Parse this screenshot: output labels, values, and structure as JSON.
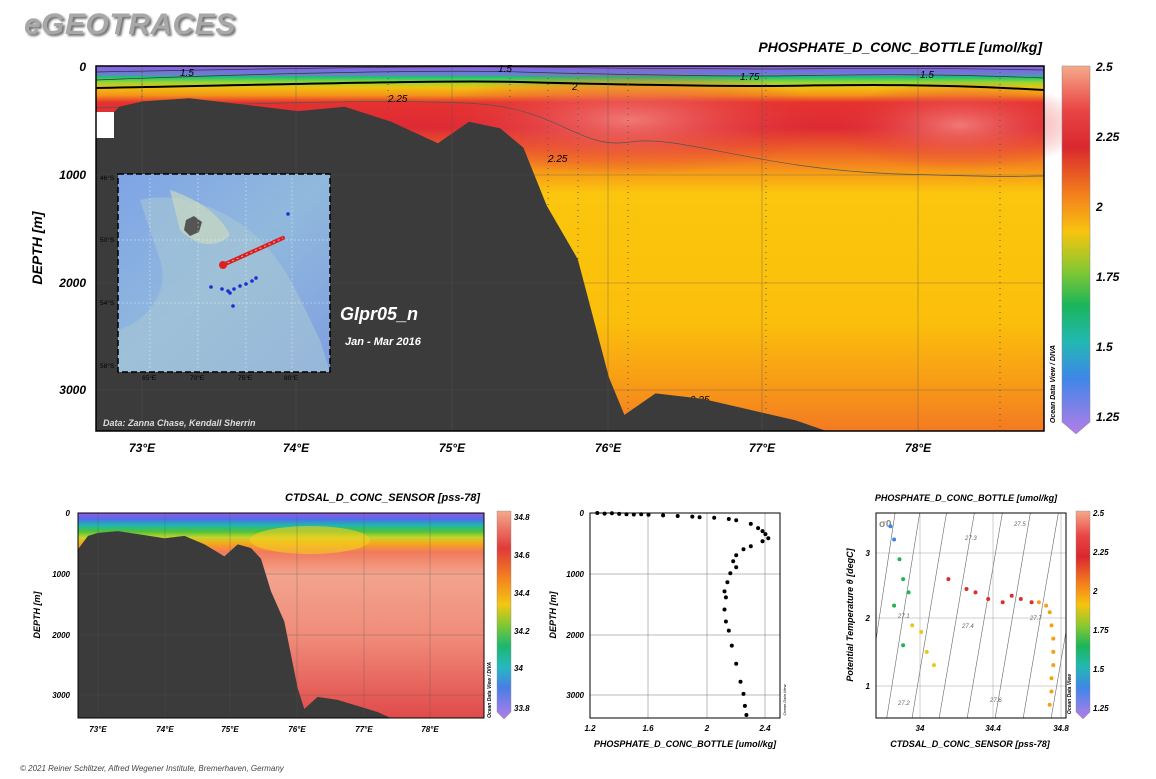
{
  "header": {
    "brand": "eGEOTRACES"
  },
  "footer": {
    "copyright": "© 2021 Reiner Schlitzer, Alfred Wegener Institute, Bremerhaven, Germany"
  },
  "main_section": {
    "title": "PHOSPHATE_D_CONC_BOTTLE [umol/kg]",
    "ylabel": "DEPTH [m]",
    "cruise_label": "GIpr05_n",
    "date_label": "Jan - Mar 2016",
    "data_credit": "Data: Zanna Chase, Kendall Sherrin",
    "odv_credit": "Ocean Data View / DIVA",
    "y_ticks": [
      "0",
      "1000",
      "2000",
      "3000"
    ],
    "x_ticks": [
      "73°E",
      "74°E",
      "75°E",
      "76°E",
      "77°E",
      "78°E"
    ],
    "contour_labels": [
      "1.5",
      "1.5",
      "1.75",
      "1.5",
      "2",
      "2.25",
      "2.25",
      "2.25"
    ],
    "colorbar_ticks": [
      "2.5",
      "2.25",
      "2",
      "1.75",
      "1.5",
      "1.25"
    ],
    "inset_lat_ticks": [
      "46°S",
      "50°S",
      "54°S",
      "58°S"
    ],
    "inset_lon_ticks": [
      "65°E",
      "70°E",
      "75°E",
      "80°E"
    ]
  },
  "salinity_section": {
    "title": "CTDSAL_D_CONC_SENSOR [pss-78]",
    "ylabel": "DEPTH [m]",
    "odv_credit": "Ocean Data View / DIVA",
    "y_ticks": [
      "0",
      "1000",
      "2000",
      "3000"
    ],
    "x_ticks": [
      "73°E",
      "74°E",
      "75°E",
      "76°E",
      "77°E",
      "78°E"
    ],
    "colorbar_ticks": [
      "34.8",
      "34.6",
      "34.4",
      "34.2",
      "34",
      "33.8"
    ]
  },
  "profile_plot": {
    "xlabel": "PHOSPHATE_D_CONC_BOTTLE [umol/kg]",
    "ylabel": "DEPTH [m]",
    "odv_credit": "Ocean Data View",
    "y_ticks": [
      "0",
      "1000",
      "2000",
      "3000"
    ],
    "x_ticks": [
      "1.2",
      "1.6",
      "2",
      "2.4"
    ]
  },
  "ts_plot": {
    "title": "PHOSPHATE_D_CONC_BOTTLE [umol/kg]",
    "xlabel": "CTDSAL_D_CONC_SENSOR [pss-78]",
    "ylabel": "Potential Temperature θ [degC]",
    "sigma_symbol": "σ0",
    "odv_credit": "Ocean Data View",
    "y_ticks": [
      "3",
      "2",
      "1"
    ],
    "x_ticks": [
      "34",
      "34.4",
      "34.8"
    ],
    "isopycnal_labels": [
      "27.1",
      "27.2",
      "27.3",
      "27.4",
      "27.5",
      "27.6",
      "27.7"
    ],
    "colorbar_ticks": [
      "2.5",
      "2.25",
      "2",
      "1.75",
      "1.5",
      "1.25"
    ]
  },
  "chart_data": [
    {
      "type": "heatmap",
      "title": "PHOSPHATE_D_CONC_BOTTLE [umol/kg]",
      "ylabel": "DEPTH [m]",
      "xlim": [
        72.7,
        78.8
      ],
      "ylim": [
        3400,
        0
      ],
      "colorbar_range": [
        1.2,
        2.5
      ],
      "contour_levels": [
        1.5,
        1.75,
        2,
        2.25
      ],
      "bathymetry": [
        [
          72.7,
          600
        ],
        [
          72.85,
          380
        ],
        [
          73.0,
          330
        ],
        [
          73.3,
          300
        ],
        [
          73.6,
          350
        ],
        [
          74.0,
          420
        ],
        [
          74.3,
          380
        ],
        [
          74.6,
          520
        ],
        [
          74.9,
          720
        ],
        [
          75.1,
          520
        ],
        [
          75.3,
          580
        ],
        [
          75.45,
          760
        ],
        [
          75.6,
          1300
        ],
        [
          75.8,
          1800
        ],
        [
          76.0,
          2900
        ],
        [
          76.1,
          3250
        ],
        [
          76.3,
          3050
        ],
        [
          76.6,
          3100
        ],
        [
          76.9,
          3200
        ],
        [
          77.2,
          3300
        ],
        [
          77.4,
          3400
        ]
      ]
    },
    {
      "type": "heatmap",
      "title": "CTDSAL_D_CONC_SENSOR [pss-78]",
      "ylabel": "DEPTH [m]",
      "xlim": [
        72.7,
        78.8
      ],
      "ylim": [
        3400,
        0
      ],
      "colorbar_range": [
        33.75,
        34.8
      ]
    },
    {
      "type": "scatter",
      "xlabel": "PHOSPHATE_D_CONC_BOTTLE [umol/kg]",
      "ylabel": "DEPTH [m]",
      "xlim": [
        1.2,
        2.5
      ],
      "ylim": [
        3400,
        0
      ],
      "points": [
        [
          1.25,
          0
        ],
        [
          1.3,
          10
        ],
        [
          1.35,
          5
        ],
        [
          1.4,
          15
        ],
        [
          1.45,
          20
        ],
        [
          1.5,
          25
        ],
        [
          1.55,
          20
        ],
        [
          1.6,
          30
        ],
        [
          1.7,
          40
        ],
        [
          1.8,
          50
        ],
        [
          1.9,
          60
        ],
        [
          1.95,
          70
        ],
        [
          2.05,
          80
        ],
        [
          2.15,
          100
        ],
        [
          2.2,
          120
        ],
        [
          2.3,
          180
        ],
        [
          2.35,
          250
        ],
        [
          2.38,
          300
        ],
        [
          2.4,
          350
        ],
        [
          2.42,
          420
        ],
        [
          2.38,
          470
        ],
        [
          2.3,
          550
        ],
        [
          2.25,
          600
        ],
        [
          2.2,
          700
        ],
        [
          2.18,
          800
        ],
        [
          2.2,
          900
        ],
        [
          2.16,
          1000
        ],
        [
          2.14,
          1150
        ],
        [
          2.12,
          1300
        ],
        [
          2.13,
          1400
        ],
        [
          2.12,
          1600
        ],
        [
          2.13,
          1800
        ],
        [
          2.15,
          1950
        ],
        [
          2.17,
          2200
        ],
        [
          2.2,
          2500
        ],
        [
          2.23,
          2800
        ],
        [
          2.25,
          3000
        ],
        [
          2.26,
          3200
        ],
        [
          2.27,
          3350
        ]
      ]
    },
    {
      "type": "scatter",
      "title": "PHOSPHATE_D_CONC_BOTTLE [umol/kg]",
      "xlabel": "CTDSAL_D_CONC_SENSOR [pss-78]",
      "ylabel": "Potential Temperature θ [degC]",
      "xlim": [
        33.8,
        34.85
      ],
      "ylim": [
        0.5,
        3.6
      ],
      "points": [
        [
          33.88,
          3.4,
          1.5
        ],
        [
          33.9,
          3.2,
          1.5
        ],
        [
          33.93,
          2.9,
          1.75
        ],
        [
          33.95,
          2.6,
          1.75
        ],
        [
          33.98,
          2.4,
          1.75
        ],
        [
          33.9,
          2.2,
          1.75
        ],
        [
          33.95,
          1.6,
          1.75
        ],
        [
          34.0,
          1.9,
          2.0
        ],
        [
          34.05,
          1.8,
          2.0
        ],
        [
          34.08,
          1.5,
          2.0
        ],
        [
          34.12,
          1.3,
          2.0
        ],
        [
          34.2,
          2.6,
          2.25
        ],
        [
          34.3,
          2.45,
          2.25
        ],
        [
          34.35,
          2.4,
          2.25
        ],
        [
          34.42,
          2.3,
          2.25
        ],
        [
          34.5,
          2.25,
          2.25
        ],
        [
          34.55,
          2.35,
          2.25
        ],
        [
          34.6,
          2.3,
          2.25
        ],
        [
          34.66,
          2.25,
          2.25
        ],
        [
          34.7,
          2.25,
          2.2
        ],
        [
          34.74,
          2.2,
          2.2
        ],
        [
          34.76,
          2.1,
          2.15
        ],
        [
          34.77,
          1.9,
          2.15
        ],
        [
          34.78,
          1.7,
          2.15
        ],
        [
          34.78,
          1.5,
          2.15
        ],
        [
          34.78,
          1.3,
          2.15
        ],
        [
          34.77,
          1.1,
          2.15
        ],
        [
          34.77,
          0.9,
          2.15
        ],
        [
          34.76,
          0.7,
          2.15
        ]
      ]
    }
  ]
}
